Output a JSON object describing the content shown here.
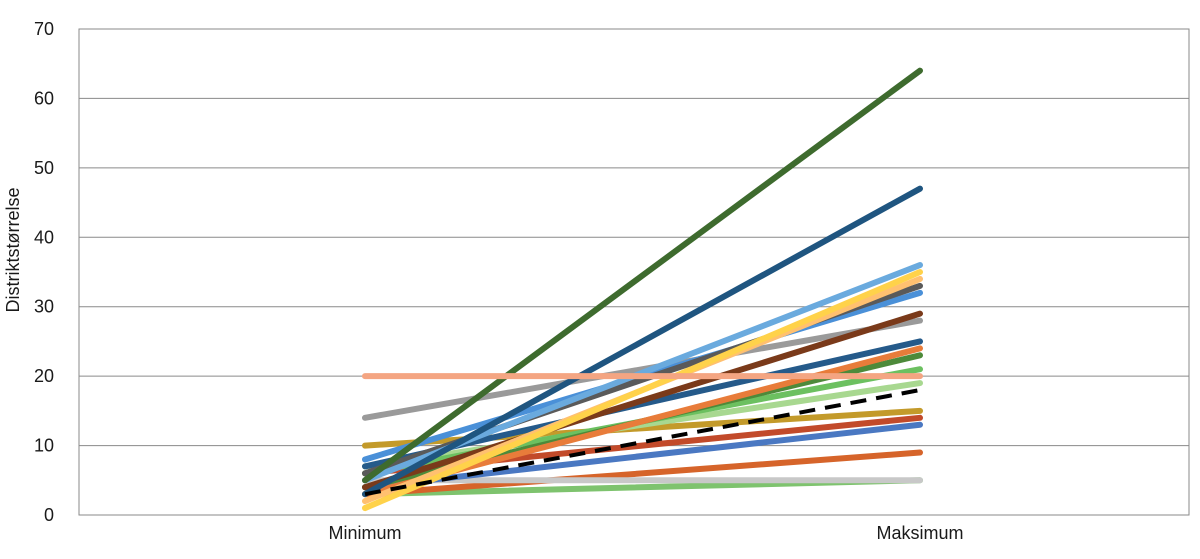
{
  "chart_data": {
    "type": "line",
    "ylabel": "Distriktstørrelse",
    "xlabel": "",
    "categories": [
      "Minimum",
      "Maksimum"
    ],
    "ylim": [
      0,
      70
    ],
    "yticks": [
      0,
      10,
      20,
      30,
      40,
      50,
      60,
      70
    ],
    "grid": "horizontal",
    "legend": "none",
    "series": [
      {
        "values": [
          3,
          5
        ],
        "color": "#7ec36e",
        "dashed": false
      },
      {
        "values": [
          3,
          9
        ],
        "color": "#d6642a",
        "dashed": false
      },
      {
        "values": [
          5,
          5
        ],
        "color": "#c8c8c8",
        "dashed": false
      },
      {
        "values": [
          4,
          13
        ],
        "color": "#4a78c2",
        "dashed": false
      },
      {
        "values": [
          6,
          14
        ],
        "color": "#c24a2a",
        "dashed": false
      },
      {
        "values": [
          10,
          15
        ],
        "color": "#c39a2a",
        "dashed": false
      },
      {
        "values": [
          7,
          19
        ],
        "color": "#a8d890",
        "dashed": false
      },
      {
        "values": [
          6,
          21
        ],
        "color": "#6cc060",
        "dashed": false
      },
      {
        "values": [
          4,
          23
        ],
        "color": "#4d8a3a",
        "dashed": false
      },
      {
        "values": [
          3,
          24
        ],
        "color": "#e87c3a",
        "dashed": false
      },
      {
        "values": [
          7,
          25
        ],
        "color": "#255a8a",
        "dashed": false
      },
      {
        "values": [
          14,
          28
        ],
        "color": "#9a9a9a",
        "dashed": false
      },
      {
        "values": [
          4,
          29
        ],
        "color": "#7a3a1a",
        "dashed": false
      },
      {
        "values": [
          8,
          32
        ],
        "color": "#4a90d8",
        "dashed": false
      },
      {
        "values": [
          6,
          33
        ],
        "color": "#5a5a5a",
        "dashed": false
      },
      {
        "values": [
          2,
          34
        ],
        "color": "#ffc070",
        "dashed": false
      },
      {
        "values": [
          1,
          35
        ],
        "color": "#ffd24a",
        "dashed": false
      },
      {
        "values": [
          5,
          36
        ],
        "color": "#6aaade",
        "dashed": false
      },
      {
        "values": [
          3,
          47
        ],
        "color": "#1f5580",
        "dashed": false
      },
      {
        "values": [
          5,
          64
        ],
        "color": "#3e6b2e",
        "dashed": false
      },
      {
        "values": [
          20,
          20
        ],
        "color": "#f4a582",
        "dashed": false
      },
      {
        "values": [
          3,
          18
        ],
        "color": "#000000",
        "dashed": true
      }
    ]
  }
}
